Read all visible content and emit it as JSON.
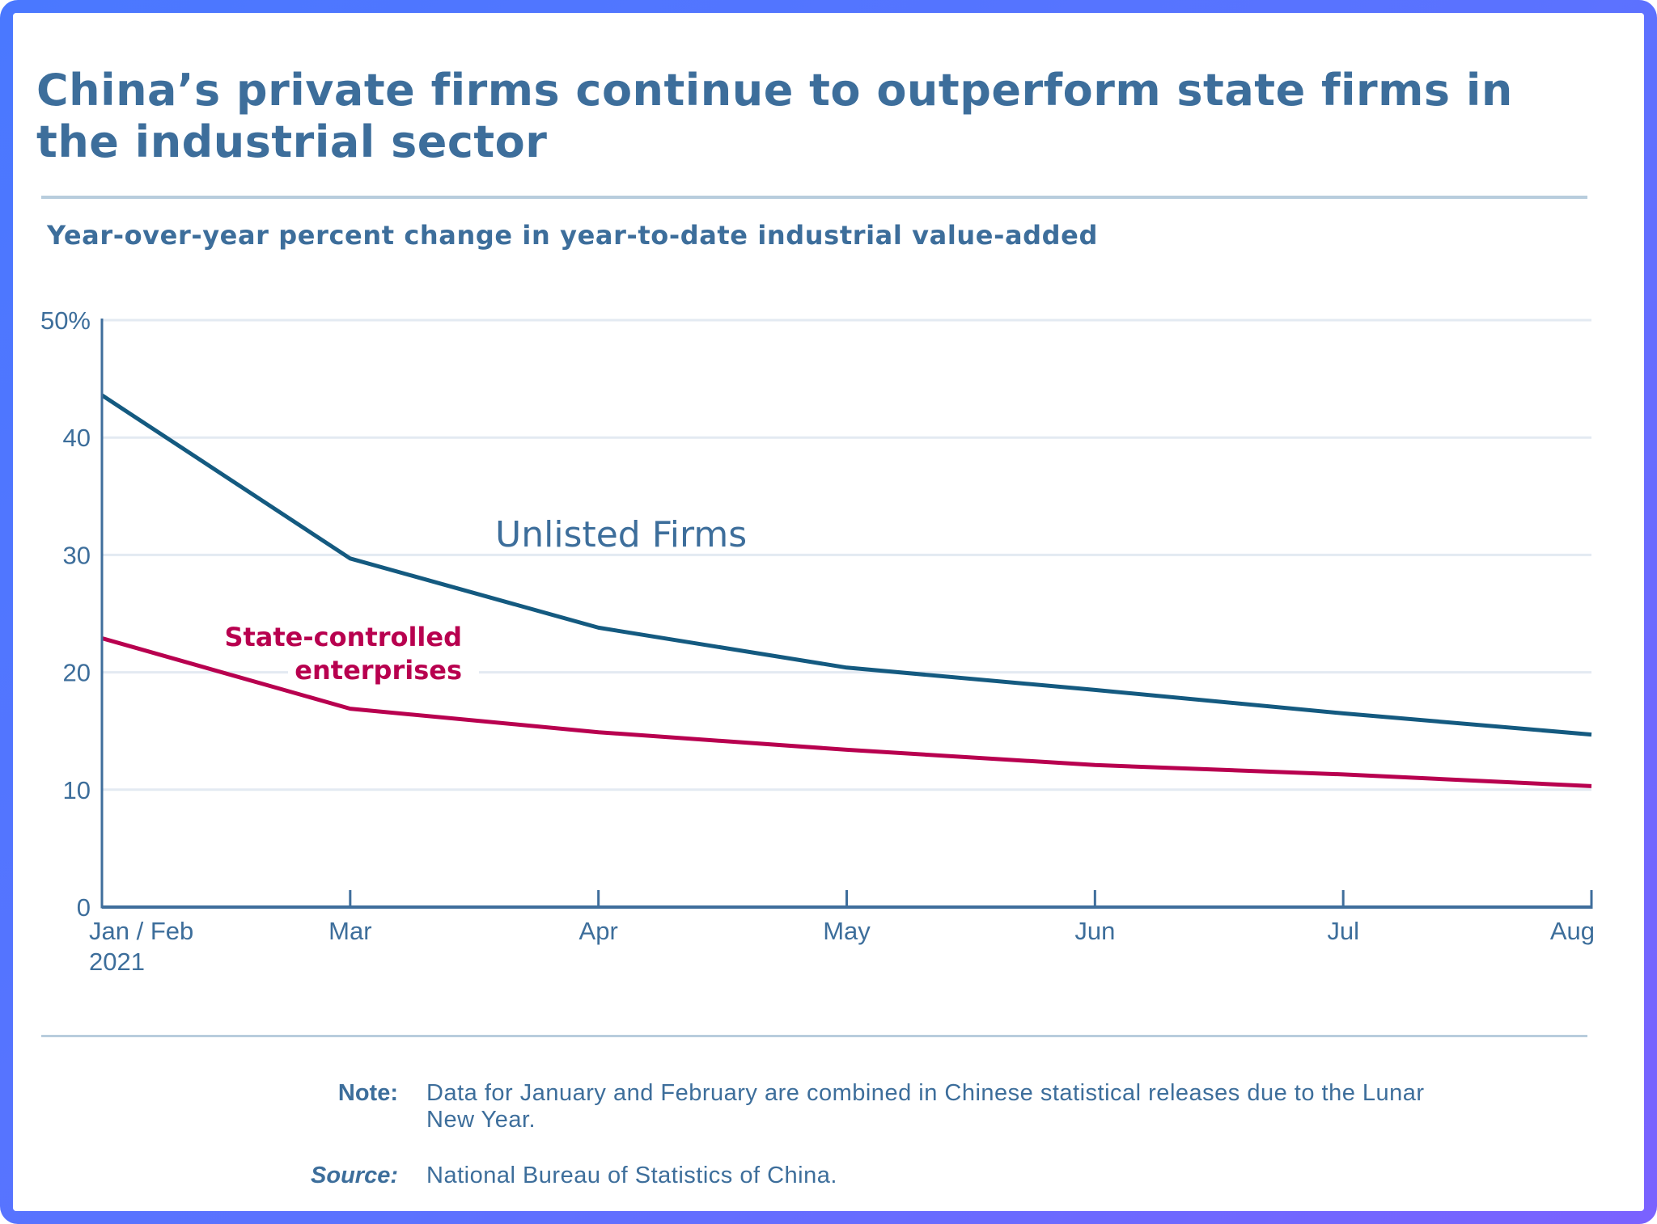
{
  "title": "China’s private firms continue to outperform state firms in the industrial sector",
  "subtitle": "Year-over-year percent change in year-to-date industrial value-added",
  "colors": {
    "text": "#3d6e9b",
    "axis": "#3f6e9c",
    "grid": "#e3eaf2",
    "divider": "#b8cddd",
    "unlisted": "#145a80",
    "state": "#b8004f",
    "border_start": "#4a78ff",
    "border_end": "#7a62ff"
  },
  "chart_data": {
    "type": "line",
    "title": "China’s private firms continue to outperform state firms in the industrial sector",
    "subtitle": "Year-over-year percent change in year-to-date industrial value-added",
    "xlabel": "",
    "ylabel": "",
    "categories": [
      "Jan / Feb 2021",
      "Mar",
      "Apr",
      "May",
      "Jun",
      "Jul",
      "Aug"
    ],
    "x_tick_labels": [
      {
        "line1": "Jan / Feb",
        "line2": "2021"
      },
      {
        "line1": "Mar",
        "line2": ""
      },
      {
        "line1": "Apr",
        "line2": ""
      },
      {
        "line1": "May",
        "line2": ""
      },
      {
        "line1": "Jun",
        "line2": ""
      },
      {
        "line1": "Jul",
        "line2": ""
      },
      {
        "line1": "Aug",
        "line2": ""
      }
    ],
    "ylim": [
      0,
      50
    ],
    "y_ticks": [
      0,
      10,
      20,
      30,
      40,
      50
    ],
    "y_tick_labels": [
      "0",
      "10",
      "20",
      "30",
      "40",
      "50%"
    ],
    "grid": true,
    "legend": "inline-labels",
    "series": [
      {
        "name": "Unlisted Firms",
        "label": "Unlisted Firms",
        "color": "#145a80",
        "values": [
          43.6,
          29.7,
          23.8,
          20.4,
          18.5,
          16.5,
          14.7
        ]
      },
      {
        "name": "State-controlled enterprises",
        "label_line1": "State-controlled",
        "label_line2": "enterprises",
        "color": "#b8004f",
        "values": [
          22.9,
          16.9,
          14.9,
          13.4,
          12.1,
          11.3,
          10.3
        ]
      }
    ]
  },
  "footer": {
    "note_label": "Note:",
    "note_line1": "Data for January and February are combined in Chinese statistical releases due to the Lunar",
    "note_line2": "New Year.",
    "source_label": "Source:",
    "source_text": "National Bureau of Statistics of China."
  }
}
